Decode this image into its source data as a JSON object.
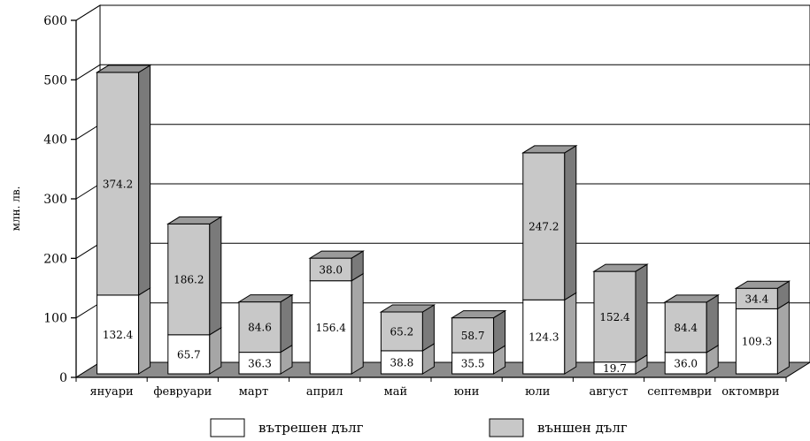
{
  "chart_data": {
    "type": "bar",
    "stacked": true,
    "three_d": true,
    "categories": [
      "януари",
      "февруари",
      "март",
      "април",
      "май",
      "юни",
      "юли",
      "август",
      "септември",
      "октомври"
    ],
    "series": [
      {
        "name": "вътрешен дълг",
        "values": [
          132.4,
          65.7,
          36.3,
          156.4,
          38.8,
          35.5,
          124.3,
          19.7,
          36.0,
          109.3
        ],
        "labels": [
          "132.4",
          "65.7",
          "36.3",
          "156.4",
          "38.8",
          "35.5",
          "124.3",
          "19.7",
          "36.0",
          "109.3"
        ]
      },
      {
        "name": "външен дълг",
        "values": [
          374.2,
          186.2,
          84.6,
          38.0,
          65.2,
          58.7,
          247.2,
          152.4,
          84.4,
          34.4
        ],
        "labels": [
          "374.2",
          "186.2",
          "84.6",
          "38.0",
          "65.2",
          "58.7",
          "247.2",
          "152.4",
          "84.4",
          "34.4"
        ]
      }
    ],
    "ylabel": "млн. лв.",
    "ylim": [
      0,
      600
    ],
    "yticks": [
      "0",
      "100",
      "200",
      "300",
      "400",
      "500",
      "600"
    ],
    "grid": true,
    "legend": "bottom",
    "colors": {
      "internal_front": "#ffffff",
      "internal_side": "#a6a6a6",
      "internal_top": "#d9d9d9",
      "external_front": "#c8c8c8",
      "external_side": "#7a7a7a",
      "external_top": "#9a9a9a",
      "floor": "#8c8c8c",
      "line": "#000000"
    }
  }
}
